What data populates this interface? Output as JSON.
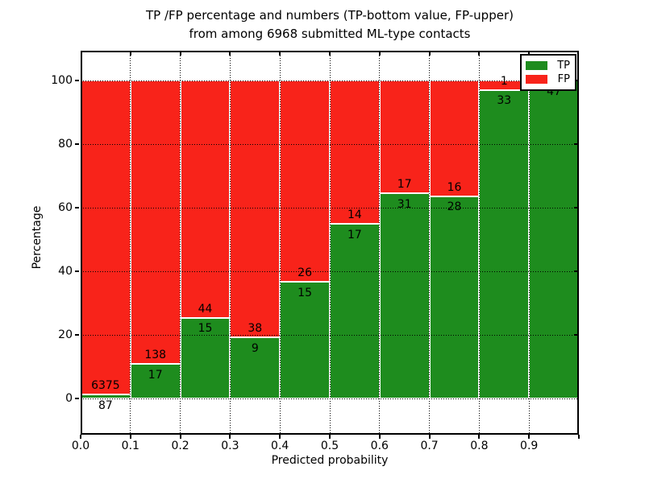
{
  "title": {
    "line1": "TP /FP percentage and numbers (TP-bottom value, FP-upper)",
    "line2": "from among 6968 submitted ML-type contacts"
  },
  "axes": {
    "xlabel": "Predicted probability",
    "ylabel": "Percentage",
    "x_tick_labels": [
      "0.0",
      "0.1",
      "0.2",
      "0.3",
      "0.4",
      "0.5",
      "0.6",
      "0.7",
      "0.8",
      "0.9"
    ],
    "y_tick_labels": [
      "0",
      "20",
      "40",
      "60",
      "80",
      "100"
    ]
  },
  "legend": {
    "position": "upper right",
    "items": [
      {
        "label": "TP"
      },
      {
        "label": "FP"
      }
    ]
  },
  "colors": {
    "tp": "#1e8c1e",
    "fp": "#f8231a",
    "background": "#ffffff",
    "grid": "#000000",
    "text": "#000000"
  },
  "chart_data": {
    "type": "bar",
    "stacked": true,
    "normalization": "each 0.1-wide bin stacked to 100%",
    "title": "TP /FP percentage and numbers (TP-bottom value, FP-upper) from among 6968 submitted ML-type contacts",
    "xlabel": "Predicted probability",
    "ylabel": "Percentage",
    "xlim": [
      0.0,
      1.0
    ],
    "ylim": [
      -11.4,
      109.4
    ],
    "grid": "dotted, on",
    "legend_position": "upper right",
    "total_contacts": 6968,
    "bin_edges": [
      0.0,
      0.1,
      0.2,
      0.3,
      0.4,
      0.5,
      0.6,
      0.7,
      0.8,
      0.9,
      1.0
    ],
    "series": [
      {
        "name": "TP",
        "color": "#1e8c1e",
        "counts": [
          87,
          17,
          15,
          9,
          15,
          17,
          31,
          28,
          33,
          47
        ]
      },
      {
        "name": "FP",
        "color": "#f8231a",
        "counts": [
          6375,
          138,
          44,
          38,
          26,
          14,
          17,
          16,
          1,
          0
        ]
      }
    ],
    "tp_percent_per_bin": [
      1.35,
      10.97,
      25.42,
      19.15,
      36.59,
      54.84,
      64.58,
      63.64,
      97.06,
      100.0
    ]
  }
}
